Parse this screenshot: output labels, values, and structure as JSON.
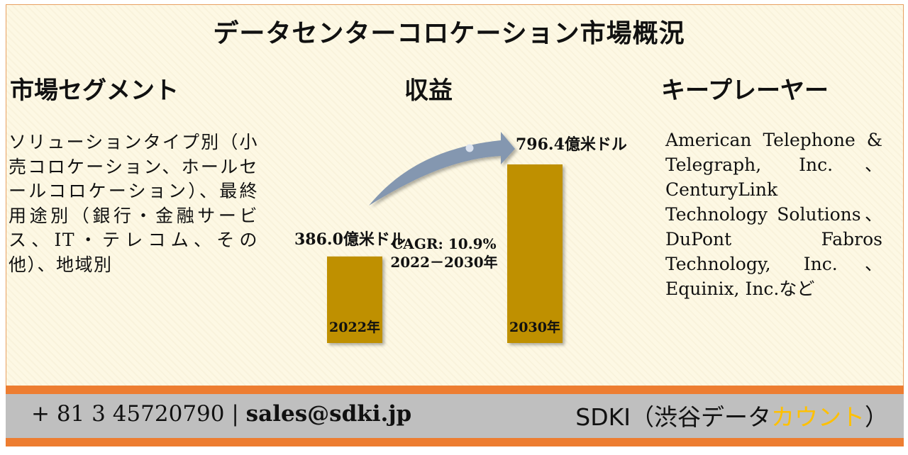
{
  "title": "データセンターコロケーション市場概況",
  "segment": {
    "heading": "市場セグメント",
    "text": "ソリューションタイプ別（小売コロケーション、ホールセールコロケーション）、最終用途別（銀行・金融サービス、IT・テレコム、その他）、地域別"
  },
  "revenue": {
    "heading": "収益"
  },
  "key_players": {
    "heading": "キープレーヤー",
    "text": "American Telephone & Telegraph, Inc.、CenturyLink Technology Solutions、DuPont Fabros Technology, Inc.、Equinix, Inc.など"
  },
  "chart_data": {
    "type": "bar",
    "categories": [
      "2022年",
      "2030年"
    ],
    "values": [
      386.0,
      796.4
    ],
    "value_labels": [
      "386.0億米ドル",
      "796.4億米ドル"
    ],
    "annotation_line1": "CAGR: 10.9%",
    "annotation_line2": "2022－2030年",
    "bar_color": "#bf9000",
    "arrow_color": "#8497b0"
  },
  "footer": {
    "phone": "+ 81 3 45720790",
    "separator": "|",
    "email": "sales@sdki.jp",
    "brand_main": "SDKI（渋谷データ",
    "brand_accent": "カウント",
    "brand_end": "）"
  },
  "colors": {
    "stripe": "#ed7d31",
    "footer_bg": "#bfbfbf",
    "panel_bg": "#fdf8e4",
    "accent": "#ffc000"
  }
}
